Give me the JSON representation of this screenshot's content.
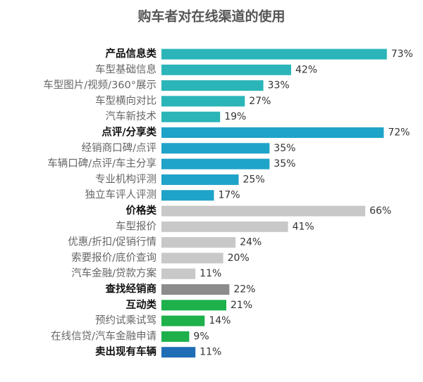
{
  "chart_data": {
    "type": "bar",
    "orientation": "horizontal",
    "title": "购车者对在线渠道的使用",
    "categories": [
      "产品信息类",
      "车型基础信息",
      "车型图片/视频/360°展示",
      "车型横向对比",
      "汽车新技术",
      "点评/分享类",
      "经销商口碑/点评",
      "车辆口碑/点评/车主分享",
      "专业机构评测",
      "独立车评人评测",
      "价格类",
      "车型报价",
      "优惠/折扣/促销行情",
      "索要报价/底价查询",
      "汽车金融/贷款方案",
      "查找经销商",
      "互动类",
      "预约试乘试驾",
      "在线信贷/汽车金融申请",
      "卖出现有车辆"
    ],
    "values": [
      73,
      42,
      33,
      27,
      19,
      72,
      35,
      35,
      25,
      17,
      66,
      41,
      24,
      20,
      11,
      22,
      21,
      14,
      9,
      11
    ],
    "value_labels": [
      "73%",
      "42%",
      "33%",
      "27%",
      "19%",
      "72%",
      "35%",
      "35%",
      "25%",
      "17%",
      "66%",
      "41%",
      "24%",
      "20%",
      "11%",
      "22%",
      "21%",
      "14%",
      "9%",
      "11%"
    ],
    "colors": [
      "#2bb5b8",
      "#2bb5b8",
      "#2bb5b8",
      "#2bb5b8",
      "#2bb5b8",
      "#1fa3c9",
      "#1fa3c9",
      "#1fa3c9",
      "#1fa3c9",
      "#1fa3c9",
      "#c8c8c8",
      "#c8c8c8",
      "#c8c8c8",
      "#c8c8c8",
      "#c8c8c8",
      "#8c8c8c",
      "#1db04b",
      "#1db04b",
      "#1db04b",
      "#1f6db5"
    ],
    "bold": [
      true,
      false,
      false,
      false,
      false,
      true,
      false,
      false,
      false,
      false,
      true,
      false,
      false,
      false,
      false,
      true,
      true,
      false,
      false,
      true
    ]
  }
}
